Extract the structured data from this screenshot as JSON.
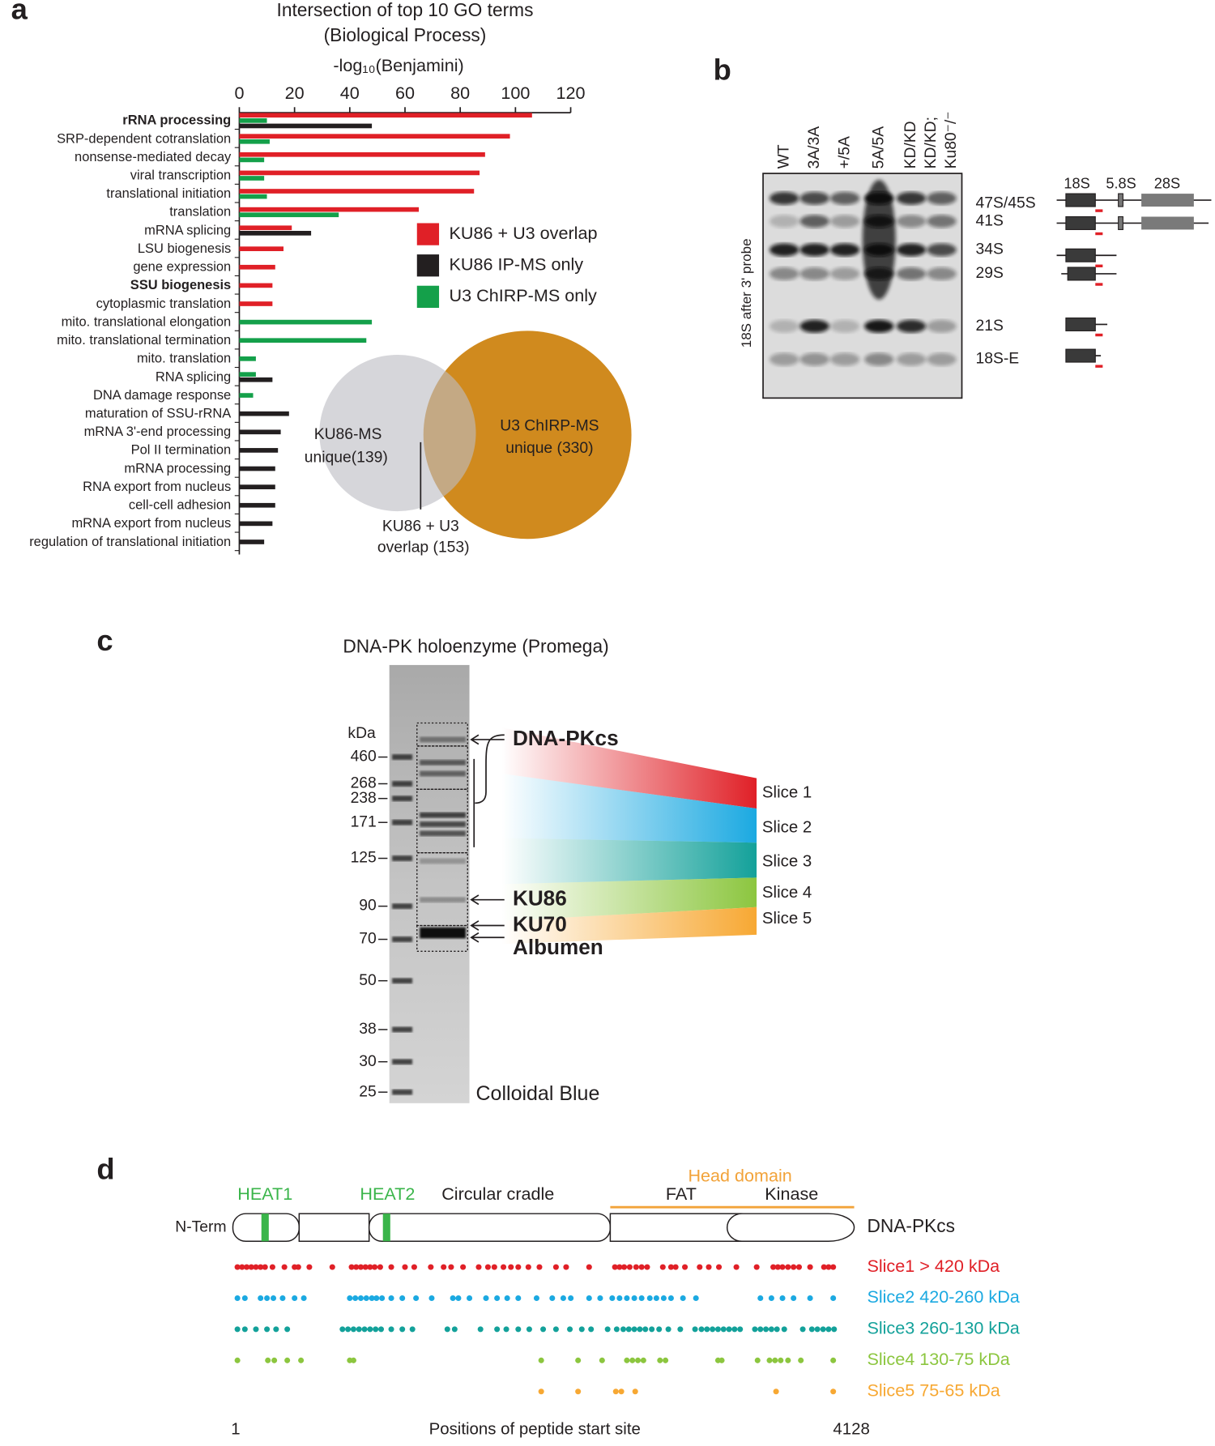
{
  "panel_labels": [
    "a",
    "b",
    "c",
    "d"
  ],
  "chart_data": [
    {
      "type": "bar",
      "orientation": "horizontal",
      "title": "Intersection of top 10 GO terms",
      "subtitle": "(Biological Process)",
      "x_label": "-log₁₀(Benjamini)",
      "categories": [
        "rRNA processing",
        "SRP-dependent cotranslation",
        "nonsense-mediated decay",
        "viral transcription",
        "translational initiation",
        "translation",
        "mRNA splicing",
        "LSU biogenesis",
        "gene expression",
        "SSU biogenesis",
        "cytoplasmic translation",
        "mito. translational elongation",
        "mito. translational termination",
        "mito. translation",
        "RNA splicing",
        "DNA damage response",
        "maturation of SSU-rRNA",
        "mRNA 3'-end processing",
        "Pol II termination",
        "mRNA processing",
        "RNA export from nucleus",
        "cell-cell adhesion",
        "mRNA export from nucleus",
        "regulation of translational initiation"
      ],
      "emphasis": [
        0,
        9
      ],
      "series": [
        {
          "name": "KU86 + U3 overlap",
          "color": "#e02027",
          "values": [
            106,
            98,
            89,
            87,
            85,
            65,
            19,
            16,
            13,
            12,
            12,
            null,
            null,
            null,
            null,
            null,
            null,
            null,
            null,
            null,
            null,
            null,
            null,
            null
          ]
        },
        {
          "name": "KU86 IP-MS only",
          "color": "#231f20",
          "values": [
            48,
            null,
            null,
            null,
            null,
            null,
            26,
            null,
            null,
            null,
            null,
            null,
            null,
            null,
            12,
            null,
            18,
            15,
            14,
            13,
            13,
            13,
            12,
            9
          ]
        },
        {
          "name": "U3 ChIRP-MS only",
          "color": "#14a04a",
          "values": [
            10,
            11,
            9,
            9,
            10,
            36,
            null,
            null,
            null,
            null,
            null,
            48,
            46,
            6,
            6,
            5,
            null,
            null,
            null,
            null,
            null,
            null,
            null,
            null
          ]
        }
      ],
      "xlim": [
        0,
        120
      ],
      "xticks": [
        0,
        20,
        40,
        60,
        80,
        100,
        120
      ],
      "grid": false,
      "legend": "right"
    },
    {
      "type": "strip",
      "x_label": "Positions of peptide start site",
      "xlim": [
        1,
        4128
      ],
      "xticks": [
        1,
        4128
      ],
      "series": [
        {
          "name": "Slice1 > 420 kDa",
          "color": "#e02027",
          "values": [
            13,
            44,
            75,
            106,
            137,
            168,
            198,
            248,
            328,
            396,
            421,
            495,
            649,
            778,
            809,
            840,
            871,
            902,
            933,
            970,
            1044,
            1136,
            1198,
            1309,
            1395,
            1445,
            1525,
            1630,
            1692,
            1735,
            1796,
            1846,
            1895,
            1963,
            2037,
            2148,
            2216,
            2370,
            2543,
            2574,
            2605,
            2642,
            2685,
            2722,
            2759,
            2864,
            2919,
            2950,
            3012,
            3111,
            3172,
            3240,
            3357,
            3493,
            3604,
            3635,
            3666,
            3703,
            3740,
            3777,
            3851,
            3944,
            3975,
            4006
          ]
        },
        {
          "name": "Slice2 420-260 kDa",
          "color": "#1ba9e1",
          "values": [
            13,
            63,
            168,
            211,
            254,
            316,
            396,
            458,
            766,
            803,
            840,
            877,
            914,
            945,
            982,
            1044,
            1118,
            1210,
            1315,
            1457,
            1494,
            1568,
            1679,
            1753,
            1821,
            1895,
            2018,
            2123,
            2197,
            2247,
            2370,
            2444,
            2525,
            2574,
            2623,
            2673,
            2722,
            2777,
            2821,
            2870,
            2919,
            2999,
            3086,
            3518,
            3592,
            3666,
            3740,
            3851,
            4006
          ]
        },
        {
          "name": "Slice3 260-130 kDa",
          "color": "#13a19a",
          "values": [
            13,
            63,
            137,
            211,
            272,
            347,
            717,
            754,
            791,
            828,
            865,
            902,
            939,
            976,
            1044,
            1118,
            1186,
            1420,
            1469,
            1642,
            1753,
            1815,
            1895,
            1969,
            2062,
            2148,
            2241,
            2321,
            2383,
            2494,
            2555,
            2599,
            2636,
            2673,
            2710,
            2747,
            2790,
            2839,
            2901,
            2981,
            3080,
            3123,
            3160,
            3197,
            3234,
            3271,
            3308,
            3345,
            3382,
            3481,
            3518,
            3555,
            3592,
            3629,
            3678,
            3802,
            3863,
            3900,
            3938,
            3975,
            4012
          ]
        },
        {
          "name": "Slice4 130-75 kDa",
          "color": "#8cc63f",
          "values": [
            13,
            217,
            260,
            347,
            439,
            766,
            791,
            2049,
            2296,
            2457,
            2623,
            2660,
            2697,
            2734,
            2845,
            2882,
            3234,
            3259,
            3499,
            3579,
            3616,
            3654,
            3703,
            3789,
            4006
          ]
        },
        {
          "name": "Slice5 75-65 kDa",
          "color": "#f7a833",
          "values": [
            2049,
            2296,
            2549,
            2586,
            2679,
            3623,
            4006
          ]
        }
      ]
    }
  ],
  "venn": {
    "left": [
      "KU86-MS",
      "unique(139)"
    ],
    "right": [
      "U3 ChIRP-MS",
      "unique (330)"
    ],
    "overlap": [
      "KU86 + U3",
      "overlap (153)"
    ]
  },
  "blot": {
    "probe": "18S after 3' probe",
    "lanes": [
      [
        "WT"
      ],
      [
        "3A/3A"
      ],
      [
        "+/5A"
      ],
      [
        "5A/5A"
      ],
      [
        "KD/KD"
      ],
      [
        "KD/KD;",
        "Ku80⁻/⁻"
      ]
    ],
    "bands": [
      "47S/45S",
      "41S",
      "34S",
      "29S",
      "21S",
      "18S-E"
    ],
    "schematic": [
      "18S",
      "5.8S",
      "28S"
    ]
  },
  "gel": {
    "title": "DNA-PK holoenzyme (Promega)",
    "unit": "kDa",
    "markers": [
      460,
      268,
      238,
      171,
      125,
      90,
      70,
      50,
      38,
      30,
      25
    ],
    "proteins": [
      "DNA-PKcs",
      "KU86",
      "KU70",
      "Albumen"
    ],
    "slices": [
      "Slice 1",
      "Slice 2",
      "Slice 3",
      "Slice 4",
      "Slice 5"
    ],
    "stain": "Colloidal Blue"
  },
  "domain_map": {
    "n_term": "N-Term",
    "protein": "DNA-PKcs",
    "heat": [
      "HEAT1",
      "HEAT2"
    ],
    "cradle": "Circular cradle",
    "head": "Head domain",
    "fat": "FAT",
    "kinase": "Kinase"
  }
}
